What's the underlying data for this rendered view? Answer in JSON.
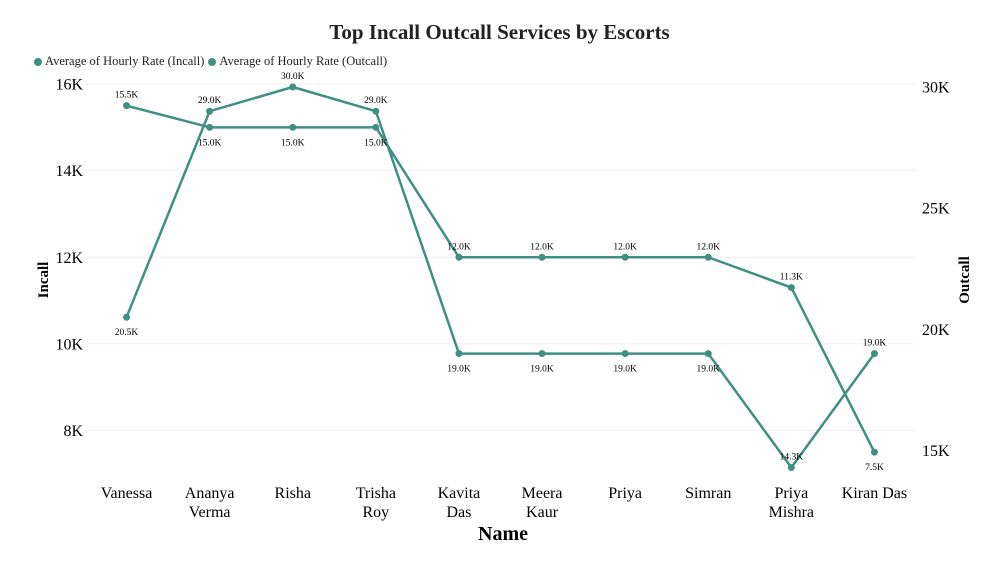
{
  "chart_data": {
    "type": "line",
    "title": "Top Incall Outcall Services by Escorts",
    "xlabel": "Name",
    "ylabel": "Incall",
    "y2label": "Outcall",
    "categories": [
      [
        "Vanessa"
      ],
      [
        "Ananya",
        "Verma"
      ],
      [
        "Risha"
      ],
      [
        "Trisha",
        "Roy"
      ],
      [
        "Kavita",
        "Das"
      ],
      [
        "Meera",
        "Kaur"
      ],
      [
        "Priya"
      ],
      [
        "Simran"
      ],
      [
        "Priya",
        "Mishra"
      ],
      [
        "Kiran Das"
      ]
    ],
    "ylim": [
      7000,
      16000
    ],
    "yticks": [
      8000,
      10000,
      12000,
      14000,
      16000
    ],
    "ytick_labels": [
      "8K",
      "10K",
      "12K",
      "14K",
      "16K"
    ],
    "y2lim": [
      14000,
      30000
    ],
    "y2ticks": [
      15000,
      20000,
      25000,
      30000
    ],
    "y2tick_labels": [
      "15K",
      "20K",
      "25K",
      "30K"
    ],
    "legend_position": "top-left",
    "grid": true,
    "series": [
      {
        "name": "Average of Hourly Rate (Incall)",
        "axis": "left",
        "color": "#3F8F82",
        "values": [
          15500,
          15000,
          15000,
          15000,
          12000,
          12000,
          12000,
          12000,
          11300,
          7500
        ],
        "labels": [
          "15.5K",
          "15.0K",
          "15.0K",
          "15.0K",
          "12.0K",
          "12.0K",
          "12.0K",
          "12.0K",
          "11.3K",
          "7.5K"
        ]
      },
      {
        "name": "Average of Hourly Rate (Outcall)",
        "axis": "right",
        "color": "#3F8F82",
        "values": [
          20500,
          29000,
          30000,
          29000,
          19000,
          19000,
          19000,
          19000,
          14300,
          19000
        ],
        "labels": [
          "20.5K",
          "29.0K",
          "30.0K",
          "29.0K",
          "19.0K",
          "19.0K",
          "19.0K",
          "19.0K",
          "14.3K",
          "19.0K"
        ]
      }
    ]
  }
}
